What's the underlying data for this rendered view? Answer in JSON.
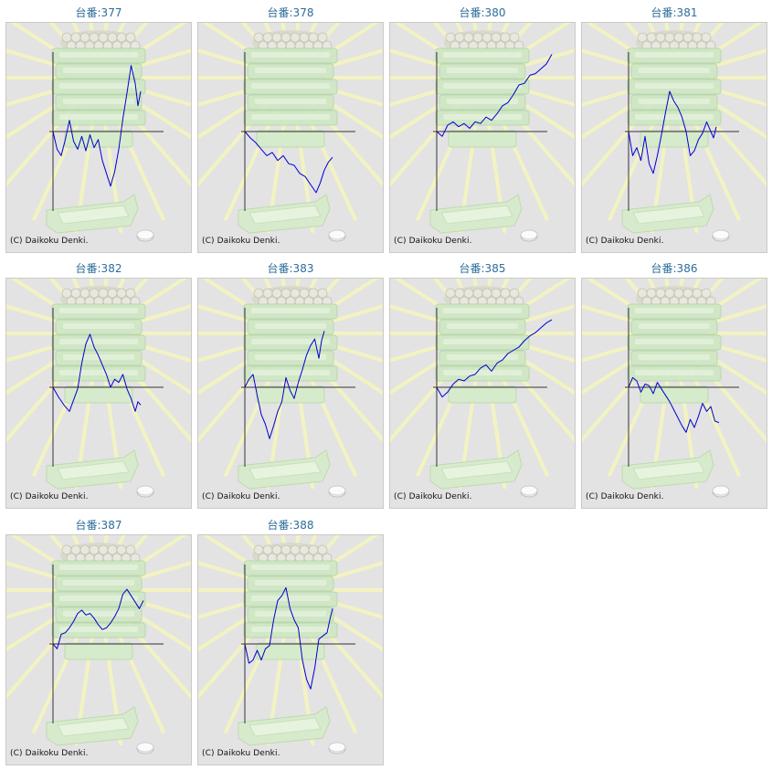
{
  "colors": {
    "title_text": "#2d6d9c",
    "graph_line": "#0000cc",
    "axis_line": "#333333",
    "panel_background": "#e3e3e3"
  },
  "background_icon": "pachinko-slot-machine-sunburst-icon",
  "copyright": "(C) Daikoku Denki.",
  "charts": [
    {
      "title": "台番:377",
      "chart_data": {
        "type": "line",
        "x_range": [
          0,
          100
        ],
        "y_range": [
          -100,
          100
        ],
        "points": [
          [
            0,
            0
          ],
          [
            3,
            -22
          ],
          [
            6,
            -30
          ],
          [
            9,
            -10
          ],
          [
            12,
            14
          ],
          [
            15,
            -12
          ],
          [
            18,
            -22
          ],
          [
            21,
            -6
          ],
          [
            24,
            -24
          ],
          [
            27,
            -4
          ],
          [
            30,
            -20
          ],
          [
            33,
            -10
          ],
          [
            36,
            -36
          ],
          [
            39,
            -52
          ],
          [
            42,
            -68
          ],
          [
            45,
            -50
          ],
          [
            48,
            -22
          ],
          [
            51,
            16
          ],
          [
            54,
            48
          ],
          [
            57,
            82
          ],
          [
            60,
            60
          ],
          [
            62,
            32
          ],
          [
            64,
            50
          ]
        ]
      }
    },
    {
      "title": "台番:378",
      "chart_data": {
        "type": "line",
        "x_range": [
          0,
          100
        ],
        "y_range": [
          -100,
          100
        ],
        "points": [
          [
            0,
            0
          ],
          [
            4,
            -8
          ],
          [
            8,
            -14
          ],
          [
            12,
            -22
          ],
          [
            16,
            -30
          ],
          [
            20,
            -26
          ],
          [
            24,
            -36
          ],
          [
            28,
            -30
          ],
          [
            32,
            -40
          ],
          [
            36,
            -42
          ],
          [
            40,
            -52
          ],
          [
            44,
            -56
          ],
          [
            48,
            -66
          ],
          [
            52,
            -76
          ],
          [
            55,
            -64
          ],
          [
            58,
            -48
          ],
          [
            61,
            -38
          ],
          [
            64,
            -32
          ]
        ]
      }
    },
    {
      "title": "台番:380",
      "chart_data": {
        "type": "line",
        "x_range": [
          0,
          100
        ],
        "y_range": [
          -100,
          100
        ],
        "points": [
          [
            0,
            0
          ],
          [
            4,
            -6
          ],
          [
            8,
            8
          ],
          [
            12,
            12
          ],
          [
            16,
            6
          ],
          [
            20,
            10
          ],
          [
            24,
            4
          ],
          [
            28,
            12
          ],
          [
            32,
            10
          ],
          [
            36,
            18
          ],
          [
            40,
            14
          ],
          [
            44,
            22
          ],
          [
            48,
            32
          ],
          [
            52,
            36
          ],
          [
            56,
            46
          ],
          [
            60,
            58
          ],
          [
            64,
            60
          ],
          [
            68,
            70
          ],
          [
            72,
            72
          ],
          [
            76,
            78
          ],
          [
            80,
            84
          ],
          [
            84,
            96
          ]
        ]
      }
    },
    {
      "title": "台番:381",
      "chart_data": {
        "type": "line",
        "x_range": [
          0,
          100
        ],
        "y_range": [
          -100,
          100
        ],
        "points": [
          [
            0,
            0
          ],
          [
            3,
            -30
          ],
          [
            6,
            -20
          ],
          [
            9,
            -36
          ],
          [
            12,
            -6
          ],
          [
            15,
            -40
          ],
          [
            18,
            -52
          ],
          [
            21,
            -30
          ],
          [
            24,
            -4
          ],
          [
            27,
            24
          ],
          [
            30,
            50
          ],
          [
            33,
            38
          ],
          [
            36,
            30
          ],
          [
            39,
            18
          ],
          [
            42,
            0
          ],
          [
            45,
            -30
          ],
          [
            48,
            -24
          ],
          [
            51,
            -10
          ],
          [
            54,
            -2
          ],
          [
            57,
            12
          ],
          [
            60,
            0
          ],
          [
            62,
            -8
          ],
          [
            64,
            6
          ]
        ]
      }
    },
    {
      "title": "台番:382",
      "chart_data": {
        "type": "line",
        "x_range": [
          0,
          100
        ],
        "y_range": [
          -100,
          100
        ],
        "points": [
          [
            0,
            0
          ],
          [
            4,
            -12
          ],
          [
            8,
            -22
          ],
          [
            12,
            -30
          ],
          [
            15,
            -16
          ],
          [
            18,
            -2
          ],
          [
            21,
            30
          ],
          [
            24,
            54
          ],
          [
            27,
            66
          ],
          [
            30,
            50
          ],
          [
            33,
            40
          ],
          [
            36,
            28
          ],
          [
            39,
            16
          ],
          [
            42,
            0
          ],
          [
            45,
            10
          ],
          [
            48,
            6
          ],
          [
            51,
            16
          ],
          [
            54,
            -2
          ],
          [
            57,
            -14
          ],
          [
            60,
            -30
          ],
          [
            62,
            -18
          ],
          [
            64,
            -22
          ]
        ]
      }
    },
    {
      "title": "台番:383",
      "chart_data": {
        "type": "line",
        "x_range": [
          0,
          100
        ],
        "y_range": [
          -100,
          100
        ],
        "points": [
          [
            0,
            0
          ],
          [
            3,
            10
          ],
          [
            6,
            16
          ],
          [
            9,
            -10
          ],
          [
            12,
            -34
          ],
          [
            15,
            -46
          ],
          [
            18,
            -64
          ],
          [
            21,
            -48
          ],
          [
            24,
            -30
          ],
          [
            27,
            -18
          ],
          [
            30,
            12
          ],
          [
            33,
            -4
          ],
          [
            36,
            -14
          ],
          [
            39,
            6
          ],
          [
            42,
            22
          ],
          [
            45,
            40
          ],
          [
            48,
            52
          ],
          [
            51,
            60
          ],
          [
            54,
            36
          ],
          [
            56,
            58
          ],
          [
            58,
            70
          ]
        ]
      }
    },
    {
      "title": "台番:385",
      "chart_data": {
        "type": "line",
        "x_range": [
          0,
          100
        ],
        "y_range": [
          -100,
          100
        ],
        "points": [
          [
            0,
            0
          ],
          [
            4,
            -12
          ],
          [
            8,
            -6
          ],
          [
            12,
            4
          ],
          [
            16,
            10
          ],
          [
            20,
            8
          ],
          [
            24,
            14
          ],
          [
            28,
            16
          ],
          [
            32,
            24
          ],
          [
            36,
            28
          ],
          [
            40,
            20
          ],
          [
            44,
            30
          ],
          [
            48,
            34
          ],
          [
            52,
            42
          ],
          [
            56,
            46
          ],
          [
            60,
            50
          ],
          [
            64,
            58
          ],
          [
            68,
            64
          ],
          [
            72,
            68
          ],
          [
            76,
            74
          ],
          [
            80,
            80
          ],
          [
            84,
            84
          ]
        ]
      }
    },
    {
      "title": "台番:386",
      "chart_data": {
        "type": "line",
        "x_range": [
          0,
          100
        ],
        "y_range": [
          -100,
          100
        ],
        "points": [
          [
            0,
            0
          ],
          [
            3,
            12
          ],
          [
            6,
            8
          ],
          [
            9,
            -6
          ],
          [
            12,
            4
          ],
          [
            15,
            2
          ],
          [
            18,
            -8
          ],
          [
            21,
            6
          ],
          [
            24,
            -2
          ],
          [
            27,
            -10
          ],
          [
            30,
            -18
          ],
          [
            33,
            -28
          ],
          [
            36,
            -38
          ],
          [
            39,
            -48
          ],
          [
            42,
            -56
          ],
          [
            45,
            -40
          ],
          [
            48,
            -50
          ],
          [
            51,
            -36
          ],
          [
            54,
            -20
          ],
          [
            57,
            -30
          ],
          [
            60,
            -24
          ],
          [
            63,
            -42
          ],
          [
            66,
            -44
          ]
        ]
      }
    },
    {
      "title": "台番:387",
      "chart_data": {
        "type": "line",
        "x_range": [
          0,
          100
        ],
        "y_range": [
          -100,
          100
        ],
        "points": [
          [
            0,
            0
          ],
          [
            3,
            -6
          ],
          [
            6,
            12
          ],
          [
            9,
            14
          ],
          [
            12,
            20
          ],
          [
            15,
            28
          ],
          [
            18,
            38
          ],
          [
            21,
            42
          ],
          [
            24,
            36
          ],
          [
            27,
            38
          ],
          [
            30,
            32
          ],
          [
            33,
            24
          ],
          [
            36,
            18
          ],
          [
            39,
            20
          ],
          [
            42,
            26
          ],
          [
            45,
            34
          ],
          [
            48,
            44
          ],
          [
            51,
            62
          ],
          [
            54,
            68
          ],
          [
            57,
            60
          ],
          [
            60,
            52
          ],
          [
            63,
            44
          ],
          [
            66,
            54
          ]
        ]
      }
    },
    {
      "title": "台番:388",
      "chart_data": {
        "type": "line",
        "x_range": [
          0,
          100
        ],
        "y_range": [
          -100,
          100
        ],
        "points": [
          [
            0,
            0
          ],
          [
            3,
            -24
          ],
          [
            6,
            -20
          ],
          [
            9,
            -8
          ],
          [
            12,
            -20
          ],
          [
            15,
            -6
          ],
          [
            18,
            -2
          ],
          [
            21,
            30
          ],
          [
            24,
            54
          ],
          [
            27,
            60
          ],
          [
            30,
            70
          ],
          [
            33,
            44
          ],
          [
            36,
            30
          ],
          [
            39,
            20
          ],
          [
            42,
            -20
          ],
          [
            45,
            -44
          ],
          [
            48,
            -56
          ],
          [
            51,
            -30
          ],
          [
            54,
            6
          ],
          [
            57,
            10
          ],
          [
            60,
            14
          ],
          [
            62,
            30
          ],
          [
            64,
            44
          ]
        ]
      }
    }
  ]
}
